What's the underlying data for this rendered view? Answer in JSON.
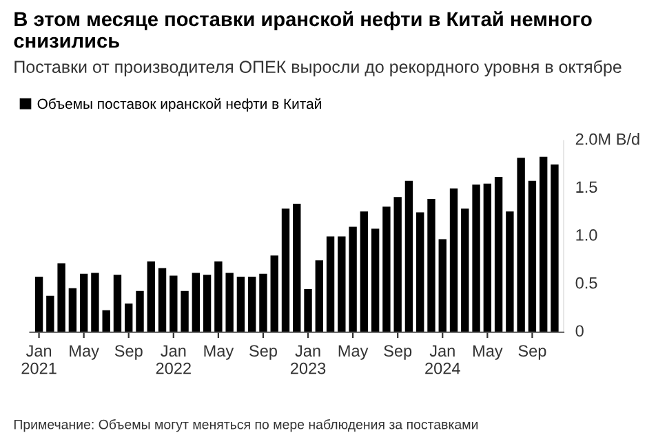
{
  "chart_data": {
    "type": "bar",
    "title": "В этом месяце поставки иранской нефти в Китай немного снизились",
    "subtitle": "Поставки от производителя ОПЕК выросли до рекордного уровня в октябре",
    "categories": [
      "Jan\n2021",
      null,
      null,
      null,
      "May",
      null,
      null,
      null,
      "Sep",
      null,
      null,
      null,
      "Jan\n2022",
      null,
      null,
      null,
      "May",
      null,
      null,
      null,
      "Sep",
      null,
      null,
      null,
      "Jan\n2023",
      null,
      null,
      null,
      "May",
      null,
      null,
      null,
      "Sep",
      null,
      null,
      null,
      "Jan\n2024",
      null,
      null,
      null,
      "May",
      null,
      null,
      null,
      "Sep",
      null,
      null
    ],
    "series": [
      {
        "name": "Объемы поставок иранской нефти в Китай",
        "color": "#000000",
        "values": [
          0.58,
          0.38,
          0.72,
          0.46,
          0.61,
          0.62,
          0.23,
          0.6,
          0.3,
          0.43,
          0.74,
          0.67,
          0.59,
          0.43,
          0.62,
          0.6,
          0.74,
          0.62,
          0.58,
          0.58,
          0.61,
          0.8,
          1.29,
          1.34,
          0.45,
          0.75,
          1.0,
          1.0,
          1.1,
          1.26,
          1.08,
          1.31,
          1.41,
          1.58,
          1.25,
          1.39,
          0.97,
          1.5,
          1.29,
          1.54,
          1.55,
          1.62,
          1.26,
          1.82,
          1.58,
          1.83,
          1.75
        ]
      }
    ],
    "ylim": [
      0,
      2.0
    ],
    "yticks": [
      0,
      0.5,
      {
        "value": 1.0,
        "label": "1.0"
      },
      1.5,
      {
        "value": 2.0,
        "label": "2.0M B/d"
      }
    ],
    "grid": false,
    "legend": "top left",
    "annotations": [
      "Примечание: Объемы могут меняться по мере наблюдения за поставками"
    ]
  }
}
